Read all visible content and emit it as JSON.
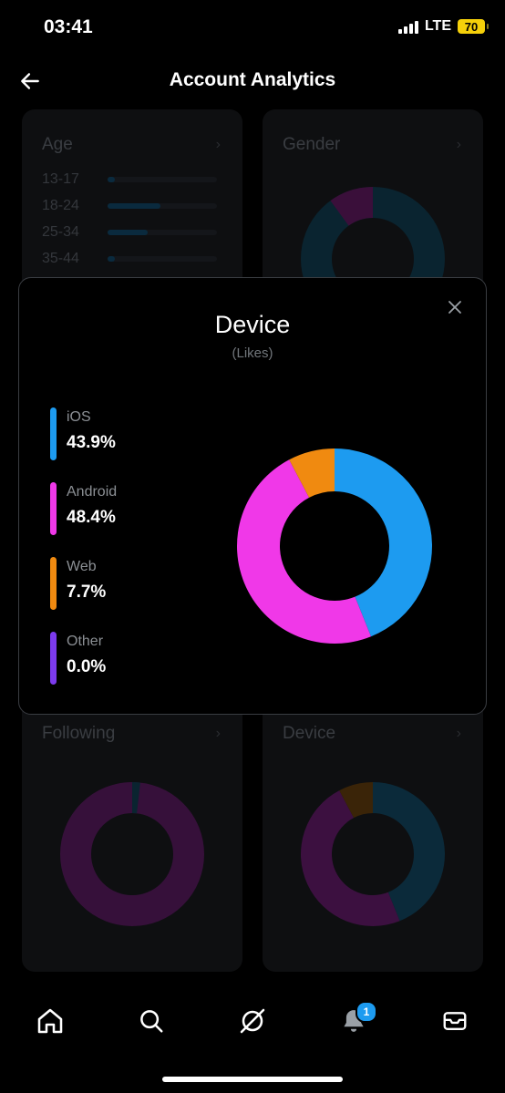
{
  "status_bar": {
    "time": "03:41",
    "network": "LTE",
    "battery": "70"
  },
  "header": {
    "title": "Account Analytics"
  },
  "cards": {
    "age": {
      "title": "Age",
      "rows": [
        {
          "label": "13-17",
          "fraction": 0.06
        },
        {
          "label": "18-24",
          "fraction": 0.48
        },
        {
          "label": "25-34",
          "fraction": 0.37
        },
        {
          "label": "35-44",
          "fraction": 0.04
        }
      ]
    },
    "gender": {
      "title": "Gender"
    },
    "following": {
      "title": "Following"
    },
    "device": {
      "title": "Device"
    }
  },
  "modal": {
    "title": "Device",
    "subtitle": "(Likes)",
    "legend": [
      {
        "name": "iOS",
        "value": "43.9%"
      },
      {
        "name": "Android",
        "value": "48.4%"
      },
      {
        "name": "Web",
        "value": "7.7%"
      },
      {
        "name": "Other",
        "value": "0.0%"
      }
    ]
  },
  "chart_data": {
    "type": "pie",
    "title": "Device",
    "subtitle": "(Likes)",
    "categories": [
      "iOS",
      "Android",
      "Web",
      "Other"
    ],
    "values": [
      43.9,
      48.4,
      7.7,
      0.0
    ],
    "colors": [
      "#1d9bf0",
      "#f038e8",
      "#f08a10",
      "#7c3aed"
    ],
    "legend": "left"
  },
  "bottom_nav": {
    "items": [
      "home-icon",
      "search-icon",
      "grok-icon",
      "notifications-icon",
      "messages-icon"
    ],
    "notification_count": "1"
  }
}
